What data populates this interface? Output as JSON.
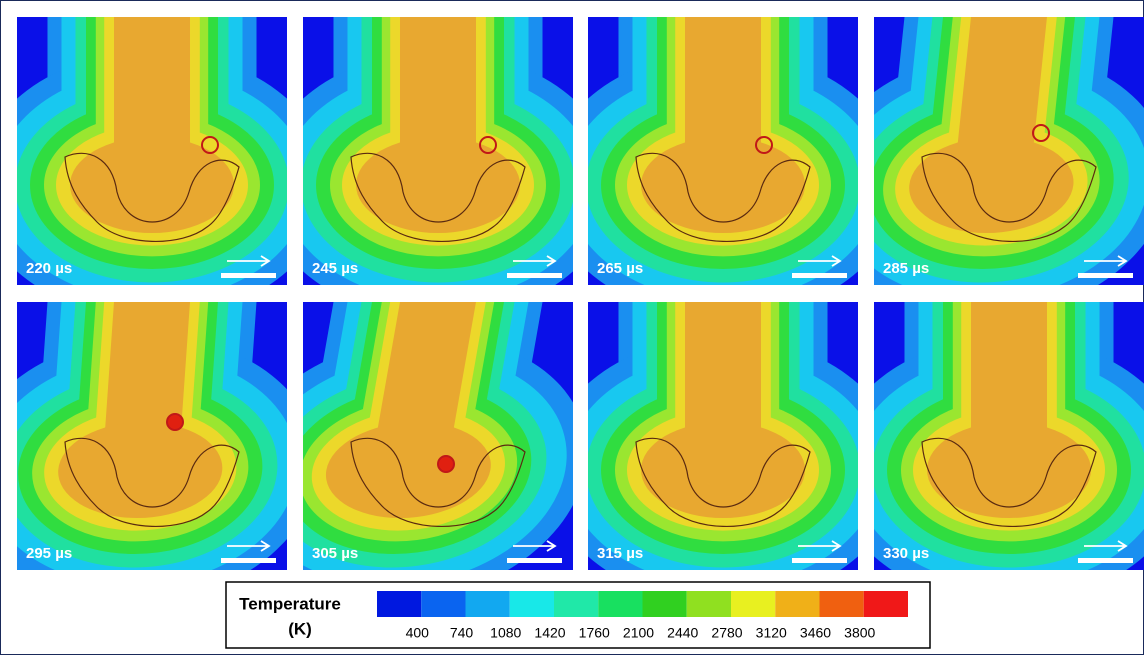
{
  "panels": [
    {
      "label": "220 µs"
    },
    {
      "label": "245 µs"
    },
    {
      "label": "265 µs"
    },
    {
      "label": "285 µs"
    },
    {
      "label": "295 µs"
    },
    {
      "label": "305 µs"
    },
    {
      "label": "315 µs"
    },
    {
      "label": "330 µs"
    }
  ],
  "colorbar": {
    "title_line1": "Temperature",
    "title_line2": "(K)",
    "colors": [
      "#0018e0",
      "#0a64f0",
      "#12a8f0",
      "#18e8e8",
      "#20e8a8",
      "#18e060",
      "#30d020",
      "#90e020",
      "#e8f020",
      "#f0b018",
      "#f06010",
      "#f01818"
    ],
    "ticks": [
      400,
      740,
      1080,
      1420,
      1760,
      2100,
      2440,
      2780,
      3120,
      3460,
      3800
    ]
  }
}
